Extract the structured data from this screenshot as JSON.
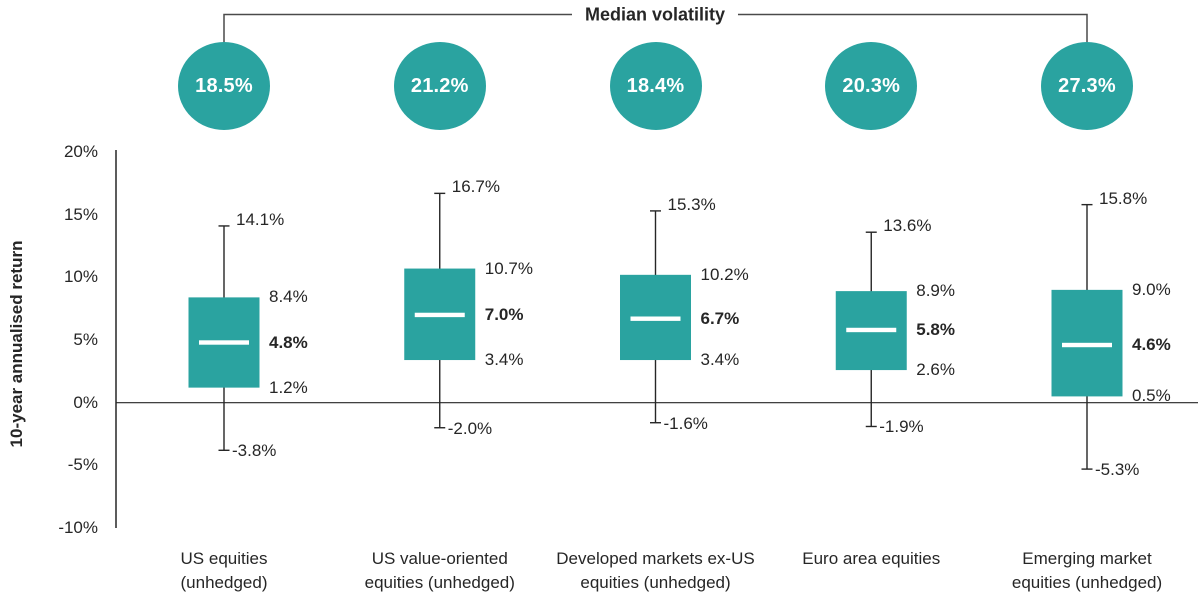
{
  "colors": {
    "accent": "#2aa3a0",
    "text": "#262626",
    "bracket_line": "#4a4a4a",
    "axis_line": "#262626",
    "median_line": "#ffffff"
  },
  "chart_data": {
    "type": "boxplot",
    "title": "Median volatility",
    "ylabel": "10-year annualised return",
    "ylim": [
      -10,
      20
    ],
    "ytick_values": [
      20,
      15,
      10,
      5,
      0,
      -5,
      -10
    ],
    "ytick_suffix": "%",
    "grid": false,
    "legend_position": "none",
    "series": [
      {
        "category": "US equities (unhedged)",
        "category_lines": [
          "US equities",
          "(unhedged)"
        ],
        "median_volatility": 18.5,
        "whisker_high": 14.1,
        "q3": 8.4,
        "median": 4.8,
        "q1": 1.2,
        "whisker_low": -3.8
      },
      {
        "category": "US value-oriented equities (unhedged)",
        "category_lines": [
          "US value-oriented",
          "equities (unhedged)"
        ],
        "median_volatility": 21.2,
        "whisker_high": 16.7,
        "q3": 10.7,
        "median": 7.0,
        "q1": 3.4,
        "whisker_low": -2.0
      },
      {
        "category": "Developed markets ex-US equities (unhedged)",
        "category_lines": [
          "Developed markets ex-US",
          "equities (unhedged)"
        ],
        "median_volatility": 18.4,
        "whisker_high": 15.3,
        "q3": 10.2,
        "median": 6.7,
        "q1": 3.4,
        "whisker_low": -1.6
      },
      {
        "category": "Euro area equities",
        "category_lines": [
          "Euro area equities"
        ],
        "median_volatility": 20.3,
        "whisker_high": 13.6,
        "q3": 8.9,
        "median": 5.8,
        "q1": 2.6,
        "whisker_low": -1.9
      },
      {
        "category": "Emerging market equities (unhedged)",
        "category_lines": [
          "Emerging market",
          "equities (unhedged)"
        ],
        "median_volatility": 27.3,
        "whisker_high": 15.8,
        "q3": 9.0,
        "median": 4.6,
        "q1": 0.5,
        "whisker_low": -5.3
      }
    ]
  }
}
